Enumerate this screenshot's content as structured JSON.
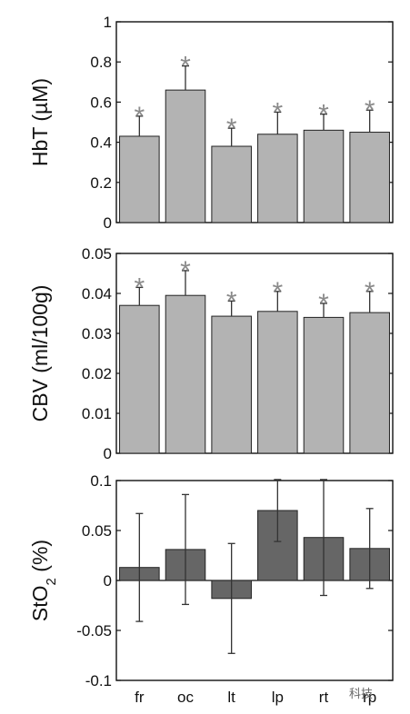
{
  "chart_data": [
    {
      "type": "bar",
      "categories": [
        "fr",
        "oc",
        "lt",
        "lp",
        "rt",
        "rp"
      ],
      "ylabel": "HbT (µM)",
      "ylim": [
        0,
        1
      ],
      "yticks": [
        "0",
        "0.2",
        "0.4",
        "0.6",
        "0.8",
        "1"
      ],
      "values": [
        0.43,
        0.66,
        0.38,
        0.44,
        0.46,
        0.45
      ],
      "err_plus": [
        0.1,
        0.12,
        0.09,
        0.11,
        0.08,
        0.11
      ],
      "significance": [
        "*",
        "*",
        "*",
        "*",
        "*",
        "*"
      ],
      "bar_color": "#b3b3b3",
      "show_xticklabels": false
    },
    {
      "type": "bar",
      "categories": [
        "fr",
        "oc",
        "lt",
        "lp",
        "rt",
        "rp"
      ],
      "ylabel": "CBV (ml/100g)",
      "ylim": [
        0,
        0.05
      ],
      "yticks": [
        "0",
        "0.01",
        "0.02",
        "0.03",
        "0.04",
        "0.05"
      ],
      "values": [
        0.037,
        0.0395,
        0.0343,
        0.0355,
        0.034,
        0.0352
      ],
      "err_plus": [
        0.0045,
        0.0062,
        0.0038,
        0.005,
        0.0035,
        0.0053
      ],
      "significance": [
        "*",
        "*",
        "*",
        "*",
        "*",
        "*"
      ],
      "bar_color": "#b3b3b3",
      "show_xticklabels": false
    },
    {
      "type": "bar",
      "categories": [
        "fr",
        "oc",
        "lt",
        "lp",
        "rt",
        "rp"
      ],
      "ylabel": "StO",
      "ylabel_subscript": "2",
      "ylabel_suffix": " (%)",
      "ylim": [
        -0.1,
        0.1
      ],
      "yticks": [
        "-0.1",
        "-0.05",
        "0",
        "0.05",
        "0.1"
      ],
      "values": [
        0.013,
        0.031,
        -0.018,
        0.07,
        0.043,
        0.032
      ],
      "err": [
        0.054,
        0.055,
        0.055,
        0.031,
        0.058,
        0.04
      ],
      "significance": [
        "",
        "",
        "",
        "",
        "",
        ""
      ],
      "bar_color": "#666666",
      "show_xticklabels": true
    }
  ],
  "watermark": "科技"
}
